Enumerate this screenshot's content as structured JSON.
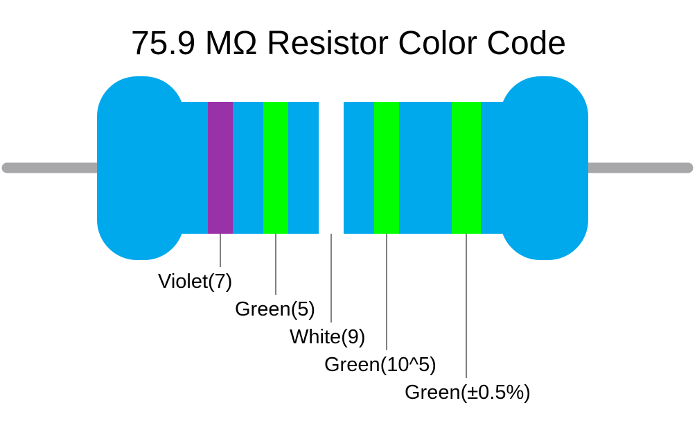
{
  "title": "75.9 MΩ Resistor Color Code",
  "bands": [
    {
      "label": "Violet(7)",
      "color": "#9932a8"
    },
    {
      "label": "Green(5)",
      "color": "#00ff00"
    },
    {
      "label": "White(9)",
      "color": "#ffffff"
    },
    {
      "label": "Green(10^5)",
      "color": "#00ff00"
    },
    {
      "label": "Green(±0.5%)",
      "color": "#00ff00"
    }
  ]
}
